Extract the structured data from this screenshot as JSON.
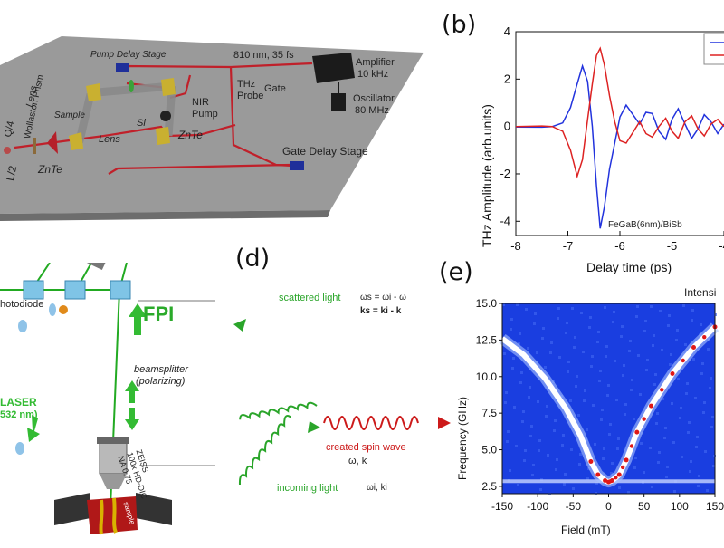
{
  "panel_labels": {
    "b": "(b)",
    "d": "(d)",
    "e": "(e)"
  },
  "panel_a": {
    "pump_delay_stage": "Pump Delay Stage",
    "pulse": "810 nm, 35 fs",
    "amplifier_line1": "Amplifier",
    "amplifier_line2": "10 kHz",
    "oscillator_line1": "Oscillator",
    "oscillator_line2": "80 MHz",
    "wollaston": "Wollaston Prism",
    "lens1": "Lens",
    "lens2": "Lens",
    "sample": "Sample",
    "si": "Si",
    "nir_line1": "NIR",
    "nir_line2": "Pump",
    "thz_line1": "THz",
    "thz_line2": "Probe",
    "gate": "Gate",
    "znte1": "ZnTe",
    "znte2": "ZnTe",
    "l2": "L/2",
    "q4": "Q/4",
    "gate_delay_stage": "Gate Delay Stage"
  },
  "panel_c": {
    "photodiode": "hotodiode",
    "fpi": "FPI",
    "laser": "LASER",
    "laser_wl": "532 nm)",
    "beamsplitter_line1": "beamsplitter",
    "beamsplitter_line2": "(polarizing)",
    "objective_line1": "ZEISS",
    "objective_line2": "100x HD-DIC",
    "objective_line3": "NA 0.75",
    "sample": "sample"
  },
  "panel_d": {
    "scattered": "scattered light",
    "eq1": "ωs = ωi - ω",
    "eq2": "ks = ki - k",
    "spin_wave": "created spin wave",
    "spin_vars": "ω, k",
    "incoming": "incoming light",
    "incoming_vars": "ωi, ki"
  },
  "chart_data": [
    {
      "type": "line",
      "xlabel": "Delay time (ps)",
      "ylabel": "THz Amplitude (arb.units)",
      "xlim": [
        -8,
        -4
      ],
      "ylim": [
        -4.6,
        4
      ],
      "xticks": [
        "-8",
        "-7",
        "-6",
        "-5",
        "-4"
      ],
      "yticks": [
        "4",
        "2",
        "0",
        "-2",
        "-4"
      ],
      "annotation": "FeGaB(6nm)/BiSb",
      "series": [
        {
          "color": "#2233dd",
          "x": [
            -8.0,
            -7.5,
            -7.3,
            -7.1,
            -6.95,
            -6.82,
            -6.72,
            -6.62,
            -6.53,
            -6.45,
            -6.38,
            -6.3,
            -6.2,
            -6.1,
            -6.0,
            -5.88,
            -5.75,
            -5.62,
            -5.5,
            -5.38,
            -5.25,
            -5.12,
            -5.0,
            -4.88,
            -4.75,
            -4.62,
            -4.5,
            -4.38,
            -4.25,
            -4.12,
            -4.0
          ],
          "values": [
            -0.02,
            -0.03,
            0.0,
            0.15,
            0.8,
            1.8,
            2.55,
            1.9,
            0.0,
            -2.5,
            -4.3,
            -3.4,
            -1.8,
            -0.7,
            0.4,
            0.9,
            0.5,
            0.1,
            0.6,
            0.55,
            -0.2,
            -0.55,
            0.3,
            0.75,
            0.1,
            -0.5,
            -0.1,
            0.5,
            0.2,
            -0.3,
            0.1
          ]
        },
        {
          "color": "#dd2222",
          "x": [
            -8.0,
            -7.5,
            -7.3,
            -7.1,
            -6.95,
            -6.82,
            -6.72,
            -6.62,
            -6.53,
            -6.45,
            -6.38,
            -6.3,
            -6.2,
            -6.1,
            -6.0,
            -5.88,
            -5.75,
            -5.62,
            -5.5,
            -5.38,
            -5.25,
            -5.12,
            -5.0,
            -4.88,
            -4.75,
            -4.62,
            -4.5,
            -4.38,
            -4.25,
            -4.12,
            -4.0
          ],
          "values": [
            0.0,
            0.02,
            0.0,
            -0.2,
            -1.0,
            -2.1,
            -1.4,
            0.3,
            1.8,
            3.0,
            3.3,
            2.6,
            1.3,
            0.2,
            -0.6,
            -0.7,
            -0.25,
            0.2,
            -0.3,
            -0.45,
            0.0,
            0.35,
            -0.2,
            -0.5,
            0.2,
            0.45,
            -0.1,
            -0.4,
            0.1,
            0.3,
            0.0
          ]
        }
      ]
    },
    {
      "type": "heatmap",
      "title": "Intensi",
      "xlabel": "Field (mT)",
      "ylabel": "Frequency (GHz)",
      "xlim": [
        -150,
        150
      ],
      "ylim": [
        2.0,
        15.0
      ],
      "xticks": [
        "-150",
        "-100",
        "-50",
        "0",
        "50",
        "100",
        "150"
      ],
      "yticks": [
        "15.0",
        "12.5",
        "10.0",
        "7.5",
        "5.0",
        "2.5"
      ],
      "branch": {
        "field": [
          -150,
          -120,
          -90,
          -60,
          -40,
          -25,
          -15,
          -5,
          0,
          5,
          15,
          25,
          40,
          60,
          90,
          120,
          150
        ],
        "frequency": [
          12.6,
          11.5,
          9.9,
          7.8,
          6.0,
          4.2,
          3.3,
          2.9,
          2.8,
          2.9,
          3.3,
          4.3,
          6.2,
          8.0,
          10.2,
          12.0,
          13.4
        ]
      },
      "flat_band_frequency": 2.85,
      "colors": {
        "background": "#1a3ee0",
        "band": "#ffffff",
        "peak": "#e01818"
      }
    }
  ]
}
